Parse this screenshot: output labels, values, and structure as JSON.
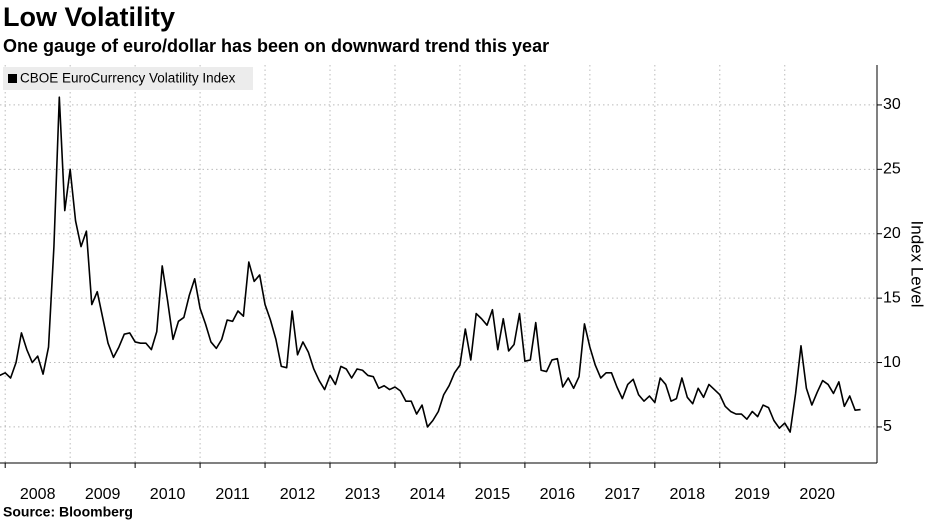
{
  "chart_data": {
    "type": "line",
    "title": "Low Volatility",
    "subtitle": "One gauge of euro/dollar has been on downward trend this year",
    "source": "Source: Bloomberg",
    "y_label": "Index Level",
    "grid": true,
    "legend": "top-left",
    "xlim": [
      2007.92,
      2021.42
    ],
    "xticks": [
      2008,
      2009,
      2010,
      2011,
      2012,
      2013,
      2014,
      2015,
      2016,
      2017,
      2018,
      2019,
      2020
    ],
    "ylim": [
      2.2,
      33.1
    ],
    "yticks": [
      5,
      10,
      15,
      20,
      25,
      30
    ],
    "x": [
      2007.917,
      2008,
      2008.083,
      2008.167,
      2008.25,
      2008.333,
      2008.417,
      2008.5,
      2008.583,
      2008.667,
      2008.75,
      2008.833,
      2008.917,
      2009,
      2009.083,
      2009.167,
      2009.25,
      2009.333,
      2009.417,
      2009.5,
      2009.583,
      2009.667,
      2009.75,
      2009.833,
      2009.917,
      2010,
      2010.083,
      2010.167,
      2010.25,
      2010.333,
      2010.417,
      2010.5,
      2010.583,
      2010.667,
      2010.75,
      2010.833,
      2010.917,
      2011,
      2011.083,
      2011.167,
      2011.25,
      2011.333,
      2011.417,
      2011.5,
      2011.583,
      2011.667,
      2011.75,
      2011.833,
      2011.917,
      2012,
      2012.083,
      2012.167,
      2012.25,
      2012.333,
      2012.417,
      2012.5,
      2012.583,
      2012.667,
      2012.75,
      2012.833,
      2012.917,
      2013,
      2013.083,
      2013.167,
      2013.25,
      2013.333,
      2013.417,
      2013.5,
      2013.583,
      2013.667,
      2013.75,
      2013.833,
      2013.917,
      2014,
      2014.083,
      2014.167,
      2014.25,
      2014.333,
      2014.417,
      2014.5,
      2014.583,
      2014.667,
      2014.75,
      2014.833,
      2014.917,
      2015,
      2015.083,
      2015.167,
      2015.25,
      2015.333,
      2015.417,
      2015.5,
      2015.583,
      2015.667,
      2015.75,
      2015.833,
      2015.917,
      2016,
      2016.083,
      2016.167,
      2016.25,
      2016.333,
      2016.417,
      2016.5,
      2016.583,
      2016.667,
      2016.75,
      2016.833,
      2016.917,
      2017,
      2017.083,
      2017.167,
      2017.25,
      2017.333,
      2017.417,
      2017.5,
      2017.583,
      2017.667,
      2017.75,
      2017.833,
      2017.917,
      2018,
      2018.083,
      2018.167,
      2018.25,
      2018.333,
      2018.417,
      2018.5,
      2018.583,
      2018.667,
      2018.75,
      2018.833,
      2018.917,
      2019,
      2019.083,
      2019.167,
      2019.25,
      2019.333,
      2019.417,
      2019.5,
      2019.583,
      2019.667,
      2019.75,
      2019.833,
      2019.917,
      2020,
      2020.083,
      2020.167,
      2020.25,
      2020.333,
      2020.417,
      2020.5,
      2020.583,
      2020.667,
      2020.75,
      2020.833,
      2020.917,
      2021,
      2021.083,
      2021.167
    ],
    "series": [
      {
        "name": "CBOE EuroCurrency Volatility Index",
        "color": "#000000",
        "values": [
          9,
          9.2,
          8.8,
          10,
          12.3,
          11,
          10,
          10.5,
          9.1,
          11.2,
          19,
          30.6,
          21.8,
          25,
          21,
          19,
          20.2,
          14.5,
          15.5,
          13.5,
          11.5,
          10.4,
          11.2,
          12.2,
          12.3,
          11.6,
          11.5,
          11.5,
          11,
          12.4,
          17.5,
          14.8,
          11.8,
          13.2,
          13.5,
          15.2,
          16.5,
          14.2,
          13,
          11.6,
          11.1,
          11.8,
          13.3,
          13.2,
          14,
          13.6,
          17.8,
          16.3,
          16.8,
          14.5,
          13.3,
          11.8,
          9.7,
          9.6,
          14,
          10.6,
          11.6,
          10.8,
          9.5,
          8.6,
          7.9,
          9,
          8.3,
          9.7,
          9.5,
          8.8,
          9.5,
          9.4,
          9,
          8.9,
          8,
          8.2,
          7.9,
          8.1,
          7.8,
          7,
          7,
          6,
          6.7,
          5,
          5.5,
          6.2,
          7.5,
          8.2,
          9.2,
          9.8,
          12.6,
          10.2,
          13.8,
          13.4,
          12.9,
          14.1,
          11,
          13.4,
          10.9,
          11.4,
          13.8,
          10.1,
          10.2,
          13.1,
          9.4,
          9.3,
          10.2,
          10.3,
          8.1,
          8.8,
          8,
          8.9,
          13,
          11.2,
          9.8,
          8.8,
          9.2,
          9.2,
          8.1,
          7.2,
          8.3,
          8.7,
          7.5,
          7,
          7.4,
          6.9,
          8.8,
          8.3,
          7,
          7.2,
          8.8,
          7.3,
          6.8,
          8,
          7.3,
          8.3,
          7.9,
          7.5,
          6.6,
          6.2,
          6,
          6,
          5.6,
          6.2,
          5.8,
          6.7,
          6.5,
          5.5,
          4.9,
          5.3,
          4.6,
          7.6,
          11.3,
          8,
          6.7,
          7.7,
          8.6,
          8.3,
          7.6,
          8.5,
          6.6,
          7.4,
          6.3,
          6.35
        ]
      }
    ]
  }
}
